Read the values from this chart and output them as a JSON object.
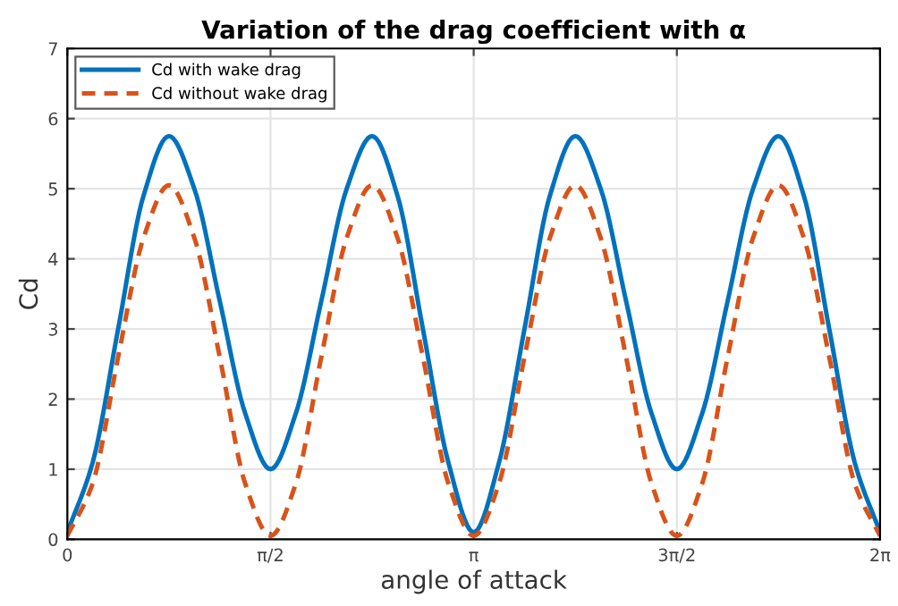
{
  "chart_data": {
    "type": "line",
    "title": "Variation of the drag coefficient with α",
    "xlabel": "angle of attack",
    "ylabel": "Cd",
    "x": [
      0,
      0.19635,
      0.3927,
      0.58905,
      0.7854,
      0.98175,
      1.1781,
      1.37445,
      1.5708,
      1.76715,
      1.9635,
      2.15985,
      2.3562,
      2.55255,
      2.7489,
      2.94525,
      3.14159,
      3.33794,
      3.53429,
      3.73064,
      3.92699,
      4.12334,
      4.31969,
      4.51604,
      4.71239,
      4.90874,
      5.10509,
      5.30144,
      5.49779,
      5.69414,
      5.89049,
      6.08684,
      6.28319
    ],
    "series": [
      {
        "name": "Cd with wake drag",
        "color": "#0072bd",
        "line_style": "solid",
        "values": [
          0.1,
          1.1,
          3.0,
          4.9,
          5.75,
          5.0,
          3.4,
          1.8,
          1.0,
          1.8,
          3.4,
          5.0,
          5.75,
          4.9,
          3.0,
          1.1,
          0.1,
          1.1,
          3.0,
          4.9,
          5.75,
          5.0,
          3.4,
          1.8,
          1.0,
          1.8,
          3.4,
          5.0,
          5.75,
          4.9,
          3.0,
          1.1,
          0.1
        ]
      },
      {
        "name": "Cd without wake drag",
        "color": "#d95319",
        "line_style": "dashed",
        "values": [
          0.05,
          0.8,
          2.6,
          4.3,
          5.05,
          4.3,
          2.6,
          0.8,
          0.05,
          0.8,
          2.6,
          4.3,
          5.05,
          4.3,
          2.6,
          0.8,
          0.05,
          0.8,
          2.6,
          4.3,
          5.05,
          4.3,
          2.6,
          0.8,
          0.05,
          0.8,
          2.6,
          4.3,
          5.05,
          4.3,
          2.6,
          0.8,
          0.05
        ]
      }
    ],
    "xlim": [
      0,
      6.28319
    ],
    "xticks": [
      0,
      {
        "value": 1.5708,
        "label": "π/2"
      },
      {
        "value": 3.14159,
        "label": "π"
      },
      {
        "value": 4.71239,
        "label": "3π/2"
      },
      {
        "value": 6.28319,
        "label": "2π"
      }
    ],
    "ylim": [
      0,
      7
    ],
    "yticks": [
      0,
      1,
      2,
      3,
      4,
      5,
      6,
      7
    ],
    "grid": true,
    "legend": "top left",
    "marker": "none"
  }
}
